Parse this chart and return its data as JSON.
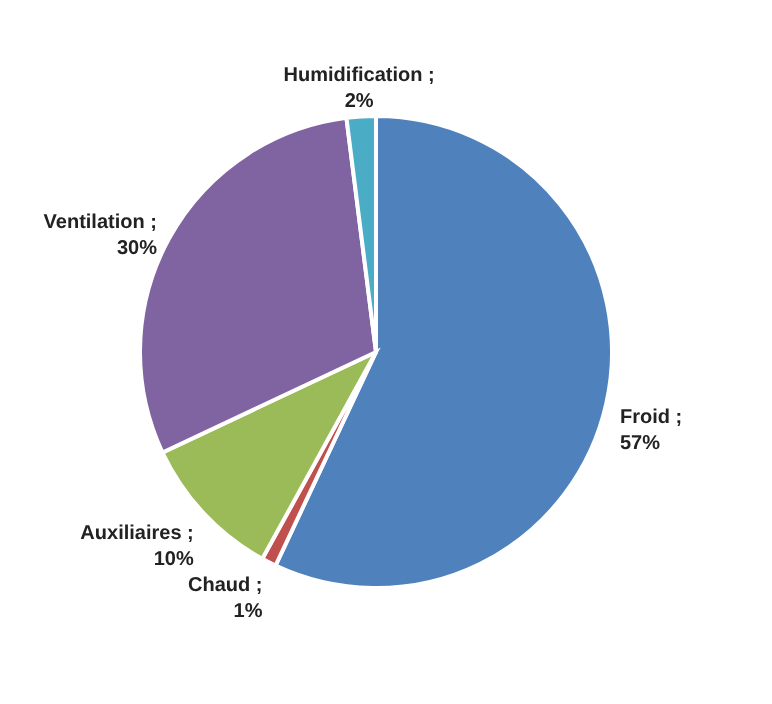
{
  "chart_data": {
    "type": "pie",
    "categories": [
      "Froid",
      "Chaud",
      "Auxiliaires",
      "Ventilation",
      "Humidification"
    ],
    "values": [
      57,
      1,
      10,
      30,
      2
    ],
    "colors": [
      "#4f81bd",
      "#c0504d",
      "#9bbb59",
      "#8064a2",
      "#4bacc6"
    ],
    "value_labels": [
      "; 57%",
      "; 1%",
      "; 10%",
      "; 30%",
      "; 2%"
    ]
  }
}
